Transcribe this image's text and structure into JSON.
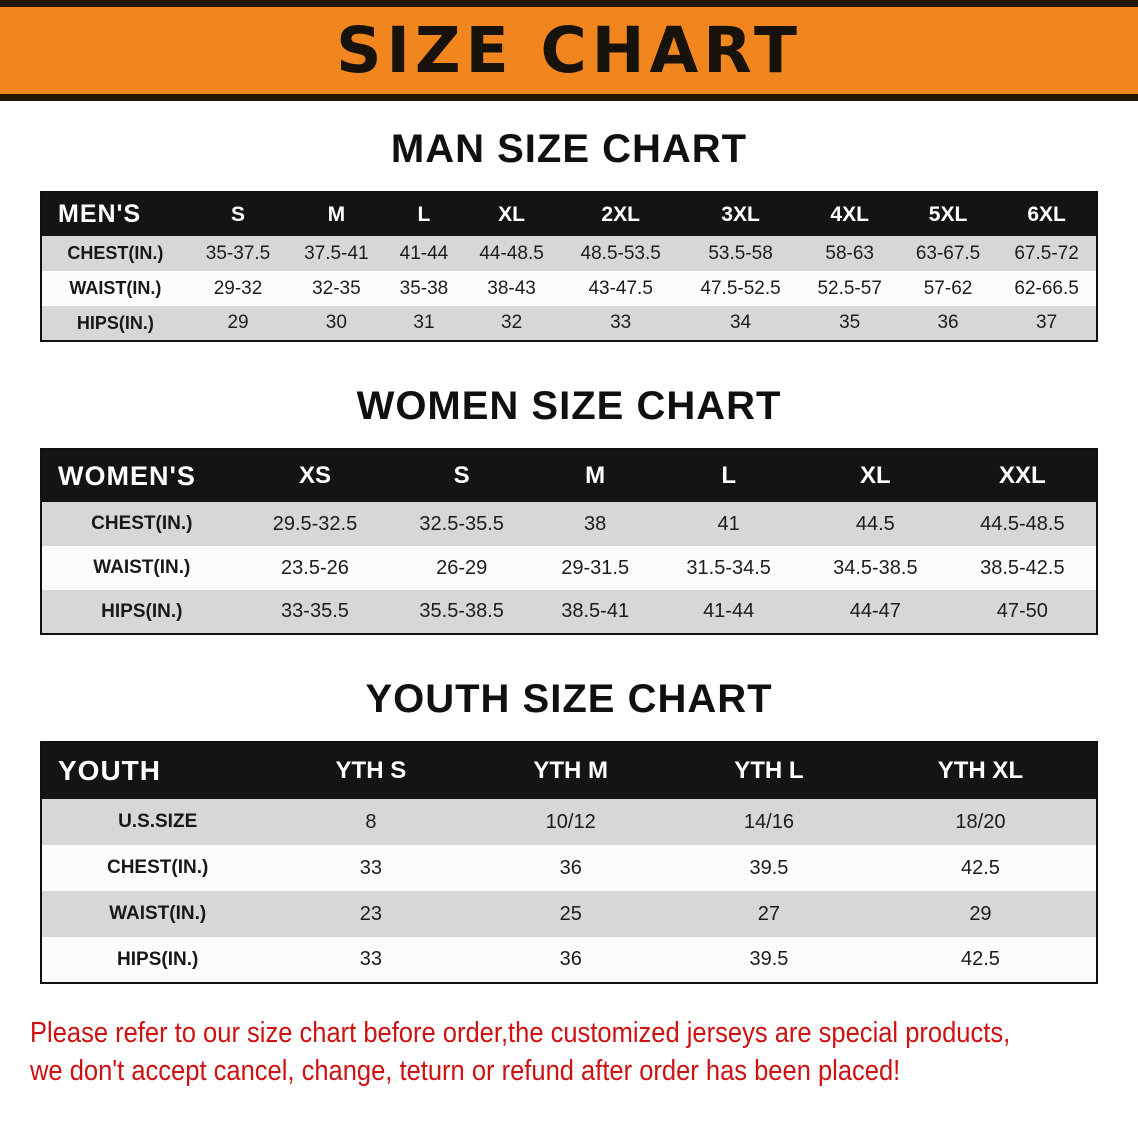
{
  "banner": {
    "title": "SIZE CHART"
  },
  "sections": [
    {
      "heading": "MAN SIZE CHART",
      "table": {
        "header": [
          "MEN'S",
          "S",
          "M",
          "L",
          "XL",
          "2XL",
          "3XL",
          "4XL",
          "5XL",
          "6XL"
        ],
        "rows": [
          [
            "CHEST(IN.)",
            "35-37.5",
            "37.5-41",
            "41-44",
            "44-48.5",
            "48.5-53.5",
            "53.5-58",
            "58-63",
            "63-67.5",
            "67.5-72"
          ],
          [
            "WAIST(IN.)",
            "29-32",
            "32-35",
            "35-38",
            "38-43",
            "43-47.5",
            "47.5-52.5",
            "52.5-57",
            "57-62",
            "62-66.5"
          ],
          [
            "HIPS(IN.)",
            "29",
            "30",
            "31",
            "32",
            "33",
            "34",
            "35",
            "36",
            "37"
          ]
        ]
      }
    },
    {
      "heading": "WOMEN SIZE CHART",
      "table": {
        "header": [
          "WOMEN'S",
          "XS",
          "S",
          "M",
          "L",
          "XL",
          "XXL"
        ],
        "rows": [
          [
            "CHEST(IN.)",
            "29.5-32.5",
            "32.5-35.5",
            "38",
            "41",
            "44.5",
            "44.5-48.5"
          ],
          [
            "WAIST(IN.)",
            "23.5-26",
            "26-29",
            "29-31.5",
            "31.5-34.5",
            "34.5-38.5",
            "38.5-42.5"
          ],
          [
            "HIPS(IN.)",
            "33-35.5",
            "35.5-38.5",
            "38.5-41",
            "41-44",
            "44-47",
            "47-50"
          ]
        ]
      }
    },
    {
      "heading": "YOUTH SIZE CHART",
      "table": {
        "header": [
          "YOUTH",
          "YTH S",
          "YTH M",
          "YTH L",
          "YTH XL"
        ],
        "rows": [
          [
            "U.S.SIZE",
            "8",
            "10/12",
            "14/16",
            "18/20"
          ],
          [
            "CHEST(IN.)",
            "33",
            "36",
            "39.5",
            "42.5"
          ],
          [
            "WAIST(IN.)",
            "23",
            "25",
            "27",
            "29"
          ],
          [
            "HIPS(IN.)",
            "33",
            "36",
            "39.5",
            "42.5"
          ]
        ]
      }
    }
  ],
  "disclaimer": {
    "lines": [
      "Please refer to our size chart before order,the customized jerseys are special products,",
      "we don't accept cancel, change, teturn or refund after order has been placed!"
    ]
  },
  "colors": {
    "banner-bg": "#f1861f",
    "banner-edge": "#241607",
    "header-bg": "#141414",
    "stripe-gray": "#d7d7d7",
    "stripe-white": "#fcfcfc",
    "disclaimer-red": "#ce1111"
  }
}
